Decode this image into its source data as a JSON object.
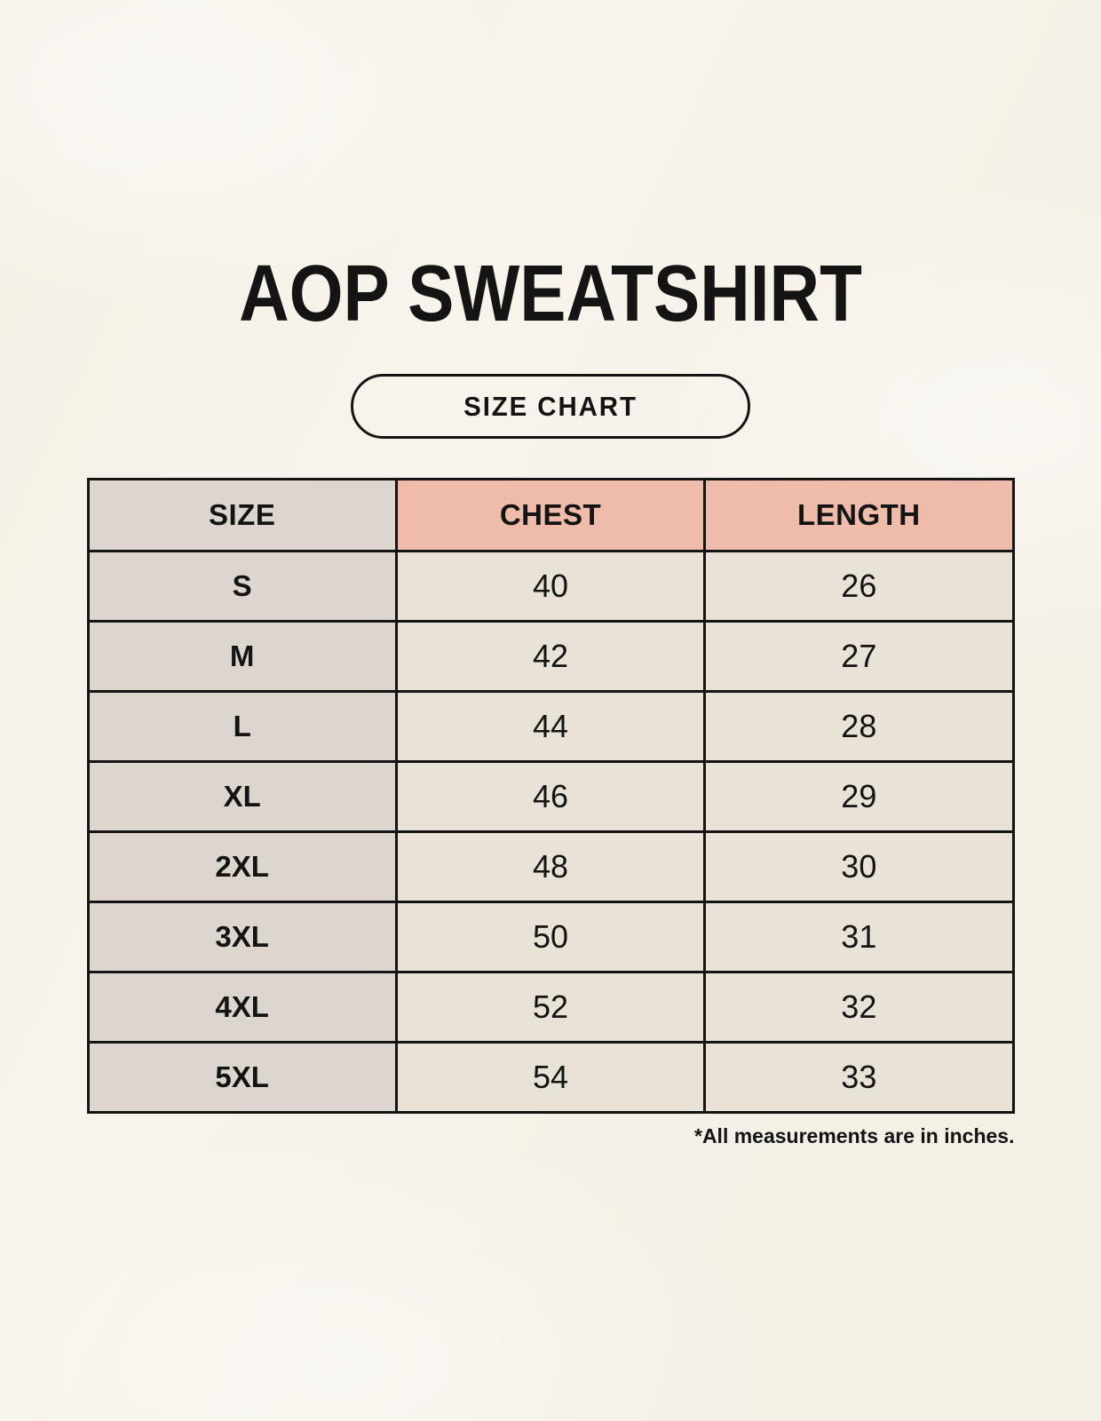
{
  "page": {
    "title": "AOP SWEATSHIRT",
    "size_chart_badge": "SIZE CHART",
    "footnote": "*All measurements are in inches."
  },
  "colors": {
    "page_background": "#f8f4ec",
    "ink": "#141414",
    "table_border": "#141414",
    "size_header_bg": "#dcd6cf",
    "measure_header_bg": "#efbbaa",
    "size_column_bg": "#dcd6cf",
    "value_cell_bg": "#e9e2d6"
  },
  "chart_data": {
    "type": "table",
    "title": "AOP SWEATSHIRT",
    "subtitle": "SIZE CHART",
    "columns": [
      "SIZE",
      "CHEST",
      "LENGTH"
    ],
    "rows": [
      {
        "size": "S",
        "chest": 40,
        "length": 26
      },
      {
        "size": "M",
        "chest": 42,
        "length": 27
      },
      {
        "size": "L",
        "chest": 44,
        "length": 28
      },
      {
        "size": "XL",
        "chest": 46,
        "length": 29
      },
      {
        "size": "2XL",
        "chest": 48,
        "length": 30
      },
      {
        "size": "3XL",
        "chest": 50,
        "length": 31
      },
      {
        "size": "4XL",
        "chest": 52,
        "length": 32
      },
      {
        "size": "5XL",
        "chest": 54,
        "length": 33
      }
    ],
    "units": "inches",
    "footnote": "*All measurements are in inches."
  }
}
